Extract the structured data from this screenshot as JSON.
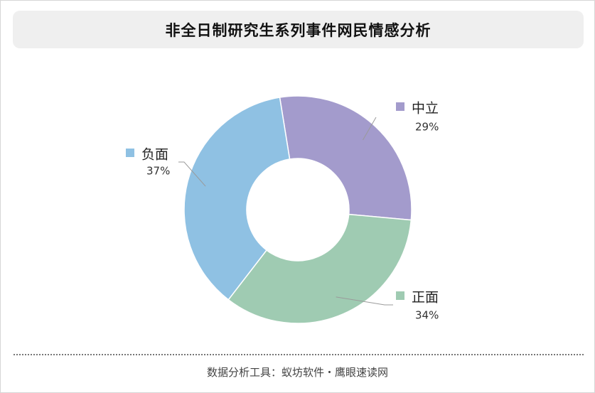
{
  "title": "非全日制研究生系列事件网民情感分析",
  "footer": "数据分析工具：蚁坊软件・鹰眼速读网",
  "colors": {
    "negative": "#8fc1e3",
    "neutral": "#a39bcc",
    "positive": "#9fcbb2"
  },
  "chart_data": {
    "type": "donut",
    "title": "非全日制研究生系列事件网民情感分析",
    "series": [
      {
        "name": "中立",
        "value": 29,
        "label": "29%",
        "color": "#a39bcc"
      },
      {
        "name": "正面",
        "value": 34,
        "label": "34%",
        "color": "#9fcbb2"
      },
      {
        "name": "负面",
        "value": 37,
        "label": "37%",
        "color": "#8fc1e3"
      }
    ],
    "legend": "inline labels with leader lines"
  }
}
